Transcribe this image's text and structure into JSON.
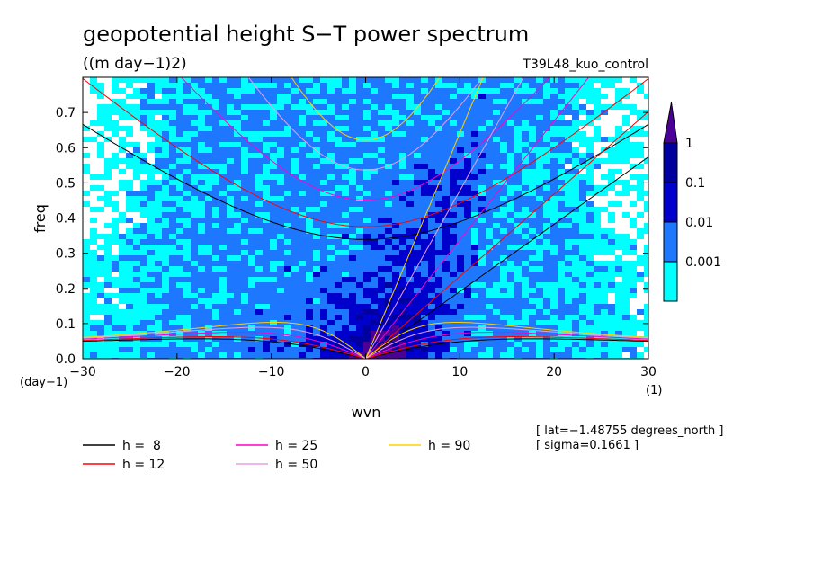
{
  "chart_data": {
    "type": "heatmap",
    "title": "geopotential height S−T power spectrum",
    "subtitle": "((m day−1)2)",
    "experiment": "T39L48_kuo_control",
    "xlabel": "wvn",
    "ylabel": "freq",
    "x_unit": "(1)",
    "y_unit": "(day−1)",
    "xlim": [
      -30,
      30
    ],
    "ylim": [
      0,
      0.8
    ],
    "x_ticks": [
      -30,
      -20,
      -10,
      0,
      10,
      20,
      30
    ],
    "x_tick_labels": [
      "−30",
      "−20",
      "−10",
      "0",
      "10",
      "20",
      "30"
    ],
    "y_ticks": [
      0,
      0.1,
      0.2,
      0.3,
      0.4,
      0.5,
      0.6,
      0.7
    ],
    "y_tick_labels": [
      "0.0",
      "0.1",
      "0.2",
      "0.3",
      "0.4",
      "0.5",
      "0.6",
      "0.7"
    ],
    "colorbar": {
      "levels": [
        0.001,
        0.01,
        0.1,
        1
      ],
      "labels": [
        "0.001",
        "0.01",
        "0.1",
        "1"
      ],
      "colors": [
        "#ffffff",
        "#00ffff",
        "#1e78ff",
        "#0000cd",
        "#0000a0",
        "#4b0096"
      ]
    },
    "dispersion_curves": [
      {
        "h": 8,
        "label": "h =  8",
        "color": "#000000"
      },
      {
        "h": 12,
        "label": "h = 12",
        "color": "#ff0000"
      },
      {
        "h": 25,
        "label": "h = 25",
        "color": "#ff00c8"
      },
      {
        "h": 50,
        "label": "h = 50",
        "color": "#e6a0e6"
      },
      {
        "h": 90,
        "label": "h = 90",
        "color": "#ffd200"
      }
    ],
    "annotations": [
      "[ lat=−1.48755 degrees_north ]",
      "[ sigma=0.1661 ]"
    ],
    "grid": false
  }
}
